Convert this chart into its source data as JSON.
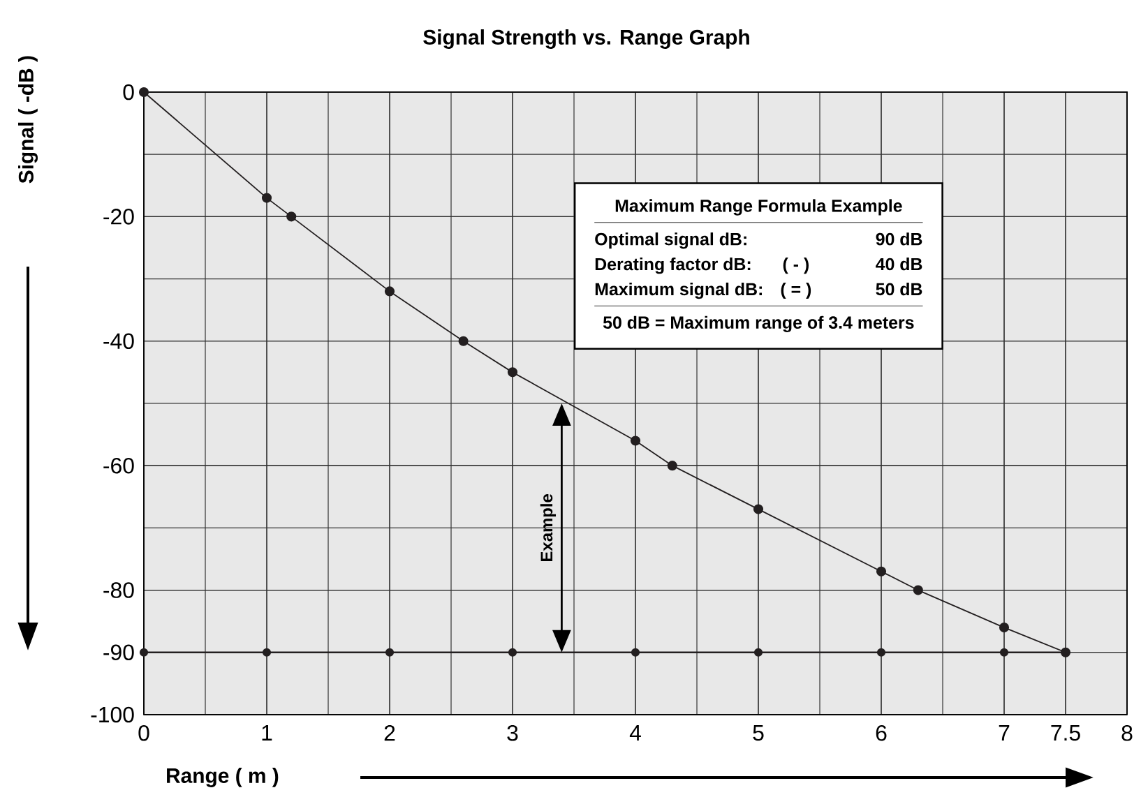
{
  "chart_data": {
    "type": "line",
    "title": "Signal Strength vs. Range Graph",
    "xlabel": "Range ( m )",
    "ylabel": "Signal ( -dB )",
    "series": [
      {
        "x": [
          0,
          1,
          1.2,
          2,
          2.6,
          3,
          4,
          4.3,
          5,
          6,
          6.3,
          7,
          7.5
        ],
        "values": [
          0,
          -17,
          -20,
          -32,
          -40,
          -45,
          -56,
          -60,
          -67,
          -77,
          -80,
          -86,
          -90
        ],
        "color": "#231f20"
      },
      {
        "x": [
          0,
          1,
          2,
          3,
          4,
          5,
          6,
          7,
          7.5
        ],
        "values": [
          -90,
          -90,
          -90,
          -90,
          -90,
          -90,
          -90,
          -90,
          -90
        ],
        "color": "#231f20"
      }
    ],
    "xlim": [
      0,
      8
    ],
    "ylim": [
      -100,
      0
    ],
    "xticks": [
      0,
      1,
      2,
      3,
      4,
      5,
      6,
      7,
      7.5,
      8
    ],
    "yticks": [
      0,
      -20,
      -40,
      -60,
      -80,
      -90,
      -100
    ],
    "grid": true,
    "marker": "circle",
    "line_style": "solid",
    "annotations": [
      "Maximum Range Formula Example",
      "Optimal signal dB:",
      "90 dB",
      "Derating factor dB:",
      "( - )",
      "40 dB",
      "Maximum signal dB:",
      "( = )",
      "50 dB",
      "50 dB = Maximum range of 3.4 meters",
      "Example"
    ]
  }
}
